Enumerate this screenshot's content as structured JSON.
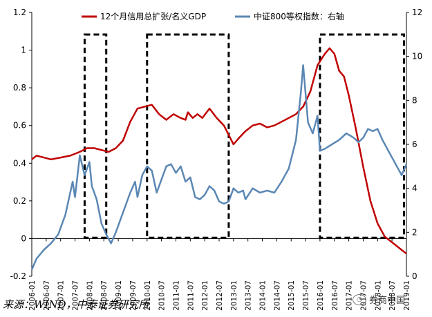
{
  "chart_data": {
    "type": "line",
    "title": "",
    "x_ticks": [
      "2006-01",
      "2006-07",
      "2007-01",
      "2007-07",
      "2008-01",
      "2008-07",
      "2009-01",
      "2009-07",
      "2010-01",
      "2010-07",
      "2011-01",
      "2011-07",
      "2012-01",
      "2012-07",
      "2013-01",
      "2013-07",
      "2014-01",
      "2014-07",
      "2015-01",
      "2015-07",
      "2016-01",
      "2016-07",
      "2017-01",
      "2017-07",
      "2018-01",
      "2018-07",
      "2019-01"
    ],
    "y_left": {
      "ticks": [
        "-0.2",
        "0",
        "0.2",
        "0.4",
        "0.6",
        "0.8",
        "1",
        "1.2"
      ],
      "range": [
        -0.2,
        1.2
      ]
    },
    "y_right": {
      "ticks": [
        "0",
        "2",
        "4",
        "6",
        "8",
        "10",
        "12"
      ],
      "range": [
        0,
        12
      ],
      "label": "右轴"
    },
    "legend": {
      "position": "top"
    },
    "series": [
      {
        "name": "12个月信用总扩张/名义GDP",
        "axis": "left",
        "color": "#C00000",
        "points": [
          [
            "2006-01",
            0.42
          ],
          [
            "2006-03",
            0.44
          ],
          [
            "2006-06",
            0.43
          ],
          [
            "2006-09",
            0.42
          ],
          [
            "2007-01",
            0.43
          ],
          [
            "2007-05",
            0.44
          ],
          [
            "2007-09",
            0.46
          ],
          [
            "2007-12",
            0.48
          ],
          [
            "2008-03",
            0.48
          ],
          [
            "2008-06",
            0.47
          ],
          [
            "2008-09",
            0.46
          ],
          [
            "2008-12",
            0.48
          ],
          [
            "2009-03",
            0.52
          ],
          [
            "2009-06",
            0.62
          ],
          [
            "2009-09",
            0.69
          ],
          [
            "2009-12",
            0.7
          ],
          [
            "2010-03",
            0.71
          ],
          [
            "2010-06",
            0.66
          ],
          [
            "2010-09",
            0.63
          ],
          [
            "2010-12",
            0.66
          ],
          [
            "2011-03",
            0.64
          ],
          [
            "2011-05",
            0.63
          ],
          [
            "2011-06",
            0.67
          ],
          [
            "2011-08",
            0.64
          ],
          [
            "2011-10",
            0.66
          ],
          [
            "2011-12",
            0.64
          ],
          [
            "2012-03",
            0.69
          ],
          [
            "2012-06",
            0.64
          ],
          [
            "2012-09",
            0.6
          ],
          [
            "2012-11",
            0.55
          ],
          [
            "2013-01",
            0.5
          ],
          [
            "2013-03",
            0.53
          ],
          [
            "2013-06",
            0.57
          ],
          [
            "2013-09",
            0.6
          ],
          [
            "2013-12",
            0.61
          ],
          [
            "2014-03",
            0.59
          ],
          [
            "2014-06",
            0.6
          ],
          [
            "2014-09",
            0.62
          ],
          [
            "2014-12",
            0.64
          ],
          [
            "2015-03",
            0.66
          ],
          [
            "2015-06",
            0.7
          ],
          [
            "2015-09",
            0.78
          ],
          [
            "2015-12",
            0.92
          ],
          [
            "2016-03",
            0.98
          ],
          [
            "2016-05",
            1.01
          ],
          [
            "2016-07",
            0.98
          ],
          [
            "2016-09",
            0.89
          ],
          [
            "2016-11",
            0.86
          ],
          [
            "2017-01",
            0.76
          ],
          [
            "2017-04",
            0.58
          ],
          [
            "2017-07",
            0.38
          ],
          [
            "2017-10",
            0.2
          ],
          [
            "2018-01",
            0.08
          ],
          [
            "2018-04",
            0.01
          ],
          [
            "2018-07",
            -0.02
          ],
          [
            "2018-10",
            -0.05
          ],
          [
            "2019-01",
            -0.08
          ]
        ]
      },
      {
        "name": "中证800等权指数：右轴",
        "axis": "right",
        "color": "#5B87B4",
        "points": [
          [
            "2006-01",
            0.3
          ],
          [
            "2006-03",
            0.8
          ],
          [
            "2006-06",
            1.2
          ],
          [
            "2006-09",
            1.5
          ],
          [
            "2006-12",
            1.9
          ],
          [
            "2007-03",
            2.8
          ],
          [
            "2007-06",
            4.3
          ],
          [
            "2007-07",
            3.6
          ],
          [
            "2007-09",
            5.5
          ],
          [
            "2007-11",
            4.6
          ],
          [
            "2008-01",
            5.2
          ],
          [
            "2008-02",
            4.1
          ],
          [
            "2008-04",
            3.5
          ],
          [
            "2008-06",
            2.4
          ],
          [
            "2008-08",
            1.9
          ],
          [
            "2008-10",
            1.5
          ],
          [
            "2008-12",
            2.0
          ],
          [
            "2009-03",
            2.9
          ],
          [
            "2009-06",
            3.8
          ],
          [
            "2009-08",
            4.3
          ],
          [
            "2009-09",
            3.6
          ],
          [
            "2009-11",
            4.6
          ],
          [
            "2010-01",
            5.0
          ],
          [
            "2010-03",
            4.8
          ],
          [
            "2010-05",
            3.8
          ],
          [
            "2010-07",
            4.4
          ],
          [
            "2010-09",
            5.0
          ],
          [
            "2010-11",
            5.1
          ],
          [
            "2011-01",
            4.7
          ],
          [
            "2011-03",
            5.0
          ],
          [
            "2011-05",
            4.3
          ],
          [
            "2011-07",
            4.5
          ],
          [
            "2011-09",
            3.6
          ],
          [
            "2011-11",
            3.5
          ],
          [
            "2012-01",
            3.7
          ],
          [
            "2012-03",
            4.1
          ],
          [
            "2012-05",
            3.9
          ],
          [
            "2012-07",
            3.4
          ],
          [
            "2012-09",
            3.3
          ],
          [
            "2012-11",
            3.4
          ],
          [
            "2013-01",
            4.0
          ],
          [
            "2013-03",
            3.8
          ],
          [
            "2013-05",
            3.9
          ],
          [
            "2013-06",
            3.5
          ],
          [
            "2013-09",
            4.0
          ],
          [
            "2013-12",
            3.8
          ],
          [
            "2014-03",
            3.9
          ],
          [
            "2014-06",
            3.8
          ],
          [
            "2014-09",
            4.3
          ],
          [
            "2014-12",
            4.9
          ],
          [
            "2015-03",
            6.2
          ],
          [
            "2015-05",
            8.3
          ],
          [
            "2015-06",
            9.6
          ],
          [
            "2015-08",
            7.0
          ],
          [
            "2015-10",
            6.5
          ],
          [
            "2015-12",
            7.3
          ],
          [
            "2016-01",
            5.7
          ],
          [
            "2016-03",
            5.8
          ],
          [
            "2016-06",
            6.0
          ],
          [
            "2016-09",
            6.2
          ],
          [
            "2016-12",
            6.5
          ],
          [
            "2017-03",
            6.3
          ],
          [
            "2017-05",
            6.1
          ],
          [
            "2017-07",
            6.3
          ],
          [
            "2017-09",
            6.7
          ],
          [
            "2017-11",
            6.6
          ],
          [
            "2018-01",
            6.7
          ],
          [
            "2018-03",
            6.2
          ],
          [
            "2018-06",
            5.6
          ],
          [
            "2018-09",
            5.0
          ],
          [
            "2018-11",
            4.6
          ],
          [
            "2019-01",
            5.1
          ]
        ]
      }
    ],
    "highlight_boxes": [
      {
        "start": "2007-11",
        "end": "2008-08"
      },
      {
        "start": "2010-01",
        "end": "2012-11"
      },
      {
        "start": "2016-01",
        "end": "2018-12"
      }
    ]
  },
  "source_text": "来源：WIND，中泰证券研究所",
  "watermark_text": "券商中国"
}
